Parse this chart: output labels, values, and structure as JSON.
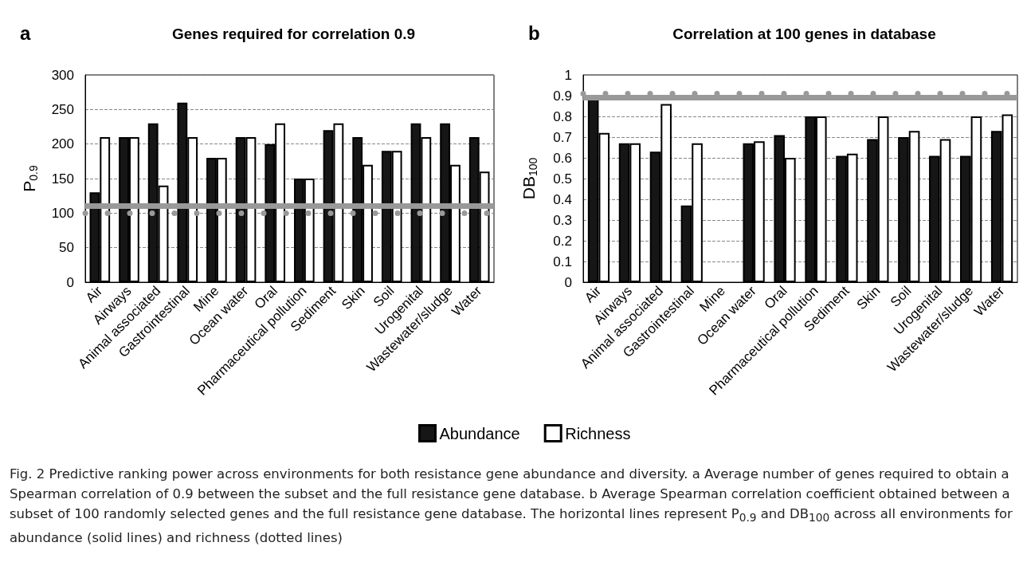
{
  "chart_data": [
    {
      "type": "bar",
      "title": "Genes required for correlation 0.9",
      "ylabel": "P$_{0.9}$",
      "categories": [
        "Air",
        "Airways",
        "Animal associated",
        "Gastrointestinal",
        "Mine",
        "Ocean water",
        "Oral",
        "Pharmaceutical pollution",
        "Sediment",
        "Skin",
        "Soil",
        "Urogenital",
        "Wastewater/sludge",
        "Water"
      ],
      "series": [
        {
          "color": "#161616",
          "values": [
            130,
            210,
            230,
            260,
            180,
            210,
            200,
            150,
            220,
            210,
            190,
            230,
            230,
            210
          ]
        },
        {
          "color": "#ffffff",
          "values": [
            210,
            210,
            140,
            210,
            180,
            210,
            230,
            150,
            230,
            170,
            190,
            210,
            170,
            160
          ]
        }
      ],
      "ylim": [
        0,
        300
      ],
      "yticks": [
        0,
        50,
        100,
        150,
        200,
        250,
        300
      ],
      "grid": "y",
      "legend": false,
      "ref_lines": [
        {
          "axis": "y",
          "value": 110,
          "color": "#999999",
          "line_style": "solid"
        },
        {
          "axis": "y",
          "value": 100,
          "color": "#999999",
          "line_style": "dotted"
        }
      ],
      "annotations": [
        "a",
        "Fig. 2 Predictive ranking power across environments for both resistance gene abundance and diversity. a Average number of genes required to obtain a Spearman correlation of 0.9 between the subset and the full resistance gene database. b Average Spearman correlation coefficient obtained between a subset of 100 randomly selected genes and the full resistance gene database. The horizontal lines represent P$_{0.9}$ and DB$_{100}$ across all environments for abundance (solid lines) and richness (dotted lines)"
      ]
    },
    {
      "type": "bar",
      "title": "Correlation at 100 genes in database",
      "ylabel": "DB$_{100}$",
      "categories": [
        "Air",
        "Airways",
        "Animal associated",
        "Gastrointestinal",
        "Mine",
        "Ocean water",
        "Oral",
        "Pharmaceutical pollution",
        "Sediment",
        "Skin",
        "Soil",
        "Urogenital",
        "Wastewater/sludge",
        "Water"
      ],
      "series": [
        {
          "name": "Abundance",
          "color": "#161616",
          "values": [
            0.89,
            0.67,
            0.63,
            0.37,
            null,
            0.67,
            0.71,
            0.8,
            0.61,
            0.69,
            0.7,
            0.61,
            0.61,
            0.73
          ]
        },
        {
          "name": "Richness",
          "color": "#ffffff",
          "values": [
            0.72,
            0.67,
            0.86,
            0.67,
            null,
            0.68,
            0.6,
            0.8,
            0.62,
            0.8,
            0.73,
            0.69,
            0.8,
            0.81
          ]
        }
      ],
      "ylim": [
        0,
        1
      ],
      "yticks": [
        0,
        0.1,
        0.2,
        0.3,
        0.4,
        0.5,
        0.6,
        0.7,
        0.8,
        0.9,
        1
      ],
      "grid": "y",
      "legend": "bottom",
      "ref_lines": [
        {
          "axis": "y",
          "value": 0.89,
          "color": "#999999",
          "line_style": "solid"
        },
        {
          "axis": "y",
          "value": 0.91,
          "color": "#999999",
          "line_style": "dotted"
        }
      ],
      "annotations": [
        "b"
      ]
    }
  ]
}
